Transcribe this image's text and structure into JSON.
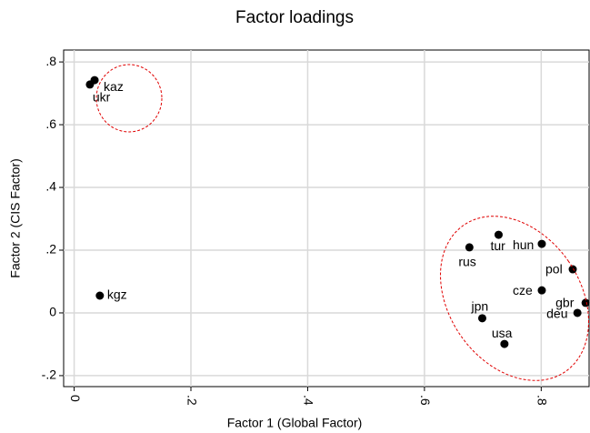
{
  "chart_data": {
    "type": "scatter",
    "title": "Factor loadings",
    "x_label": "Factor 1 (Global Factor)",
    "y_label": "Factor 2 (CIS Factor)",
    "point_labels": [
      "ukr",
      "kaz",
      "kgz",
      "rus",
      "tur",
      "hun",
      "pol",
      "cze",
      "gbr",
      "deu",
      "jpn",
      "usa"
    ],
    "x": [
      0.027,
      0.035,
      0.044,
      0.677,
      0.727,
      0.801,
      0.854,
      0.801,
      0.876,
      0.862,
      0.699,
      0.737
    ],
    "values": [
      0.728,
      0.742,
      0.055,
      0.209,
      0.249,
      0.22,
      0.139,
      0.072,
      0.032,
      0.0,
      -0.017,
      -0.099
    ],
    "color": "#000000",
    "xlim": [
      -0.018,
      0.882
    ],
    "ylim": [
      -0.235,
      0.838
    ],
    "xticks": [
      0,
      {
        "value": 0.2,
        "label": ".2"
      },
      {
        "value": 0.4,
        "label": ".4"
      },
      {
        "value": 0.6,
        "label": ".6"
      },
      {
        "value": 0.8,
        "label": ".8"
      }
    ],
    "yticks": [
      {
        "value": -0.2,
        "label": "-.2"
      },
      0,
      {
        "value": 0.2,
        "label": ".2"
      },
      {
        "value": 0.4,
        "label": ".4"
      },
      {
        "value": 0.6,
        "label": ".6"
      },
      {
        "value": 0.8,
        "label": ".8"
      }
    ],
    "grid": true
  }
}
